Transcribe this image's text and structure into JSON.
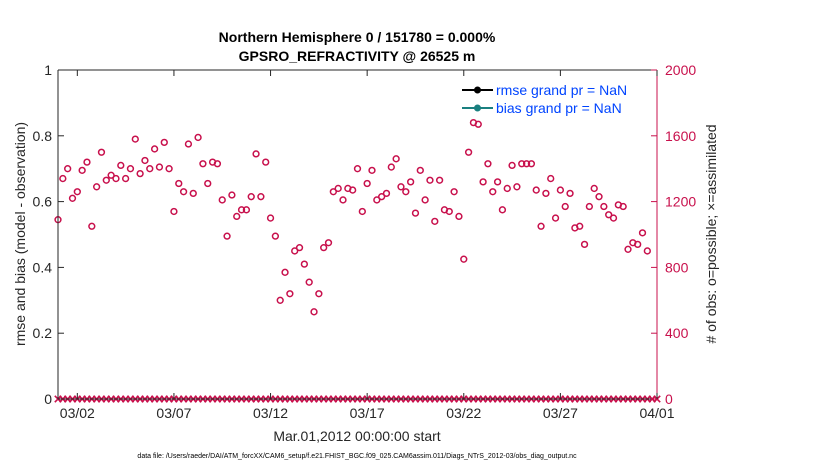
{
  "chart_data": {
    "type": "scatter",
    "title_line1": "Northern Hemisphere 0 / 151780 = 0.000%",
    "title_line2": "GPSRO_REFRACTIVITY @ 26525 m",
    "xlabel": "Mar.01,2012 00:00:00 start",
    "ylabel_left": "rmse and bias (model - observation)",
    "ylabel_right": "# of obs: o=possible; ×=assimilated",
    "xlim": [
      1,
      32
    ],
    "ylim_left": [
      0,
      1
    ],
    "ylim_right": [
      0,
      2000
    ],
    "x_ticks": [
      {
        "value": 2,
        "label": "03/02"
      },
      {
        "value": 7,
        "label": "03/07"
      },
      {
        "value": 12,
        "label": "03/12"
      },
      {
        "value": 17,
        "label": "03/17"
      },
      {
        "value": 22,
        "label": "03/22"
      },
      {
        "value": 27,
        "label": "03/27"
      },
      {
        "value": 32,
        "label": "04/01"
      }
    ],
    "y_ticks_left": [
      {
        "value": 0,
        "label": "0"
      },
      {
        "value": 0.2,
        "label": "0.2"
      },
      {
        "value": 0.4,
        "label": "0.4"
      },
      {
        "value": 0.6,
        "label": "0.6"
      },
      {
        "value": 0.8,
        "label": "0.8"
      },
      {
        "value": 1,
        "label": "1"
      }
    ],
    "y_ticks_right": [
      {
        "value": 0,
        "label": "0"
      },
      {
        "value": 400,
        "label": "400"
      },
      {
        "value": 800,
        "label": "800"
      },
      {
        "value": 1200,
        "label": "1200"
      },
      {
        "value": 1600,
        "label": "1600"
      },
      {
        "value": 2000,
        "label": "2000"
      }
    ],
    "legend": [
      {
        "label": "rmse grand pr = NaN",
        "line_color": "#000000",
        "marker_color": "#000000"
      },
      {
        "label": "bias grand pr = NaN",
        "line_color": "#1a8080",
        "marker_color": "#1a8080"
      }
    ],
    "legend_text_color": "#0044ff",
    "obs_color": "#c8104c",
    "axis_color": "#262626",
    "possible_obs": [
      {
        "x": 1.0,
        "y": 1090
      },
      {
        "x": 1.25,
        "y": 1340
      },
      {
        "x": 1.5,
        "y": 1400
      },
      {
        "x": 1.75,
        "y": 1220
      },
      {
        "x": 2.0,
        "y": 1260
      },
      {
        "x": 2.25,
        "y": 1390
      },
      {
        "x": 2.5,
        "y": 1440
      },
      {
        "x": 2.75,
        "y": 1050
      },
      {
        "x": 3.0,
        "y": 1290
      },
      {
        "x": 3.25,
        "y": 1500
      },
      {
        "x": 3.5,
        "y": 1330
      },
      {
        "x": 3.75,
        "y": 1360
      },
      {
        "x": 4.0,
        "y": 1340
      },
      {
        "x": 4.25,
        "y": 1420
      },
      {
        "x": 4.5,
        "y": 1340
      },
      {
        "x": 4.75,
        "y": 1400
      },
      {
        "x": 5.0,
        "y": 1580
      },
      {
        "x": 5.25,
        "y": 1370
      },
      {
        "x": 5.5,
        "y": 1450
      },
      {
        "x": 5.75,
        "y": 1400
      },
      {
        "x": 6.0,
        "y": 1520
      },
      {
        "x": 6.25,
        "y": 1410
      },
      {
        "x": 6.5,
        "y": 1560
      },
      {
        "x": 6.75,
        "y": 1400
      },
      {
        "x": 7.0,
        "y": 1140
      },
      {
        "x": 7.25,
        "y": 1310
      },
      {
        "x": 7.5,
        "y": 1260
      },
      {
        "x": 7.75,
        "y": 1550
      },
      {
        "x": 8.0,
        "y": 1250
      },
      {
        "x": 8.25,
        "y": 1590
      },
      {
        "x": 8.5,
        "y": 1430
      },
      {
        "x": 8.75,
        "y": 1310
      },
      {
        "x": 9.0,
        "y": 1440
      },
      {
        "x": 9.25,
        "y": 1430
      },
      {
        "x": 9.5,
        "y": 1210
      },
      {
        "x": 9.75,
        "y": 990
      },
      {
        "x": 10.0,
        "y": 1240
      },
      {
        "x": 10.25,
        "y": 1110
      },
      {
        "x": 10.5,
        "y": 1150
      },
      {
        "x": 10.75,
        "y": 1150
      },
      {
        "x": 11.0,
        "y": 1230
      },
      {
        "x": 11.25,
        "y": 1490
      },
      {
        "x": 11.5,
        "y": 1230
      },
      {
        "x": 11.75,
        "y": 1440
      },
      {
        "x": 12.0,
        "y": 1100
      },
      {
        "x": 12.25,
        "y": 990
      },
      {
        "x": 12.5,
        "y": 600
      },
      {
        "x": 12.75,
        "y": 770
      },
      {
        "x": 13.0,
        "y": 640
      },
      {
        "x": 13.25,
        "y": 900
      },
      {
        "x": 13.5,
        "y": 920
      },
      {
        "x": 13.75,
        "y": 820
      },
      {
        "x": 14.0,
        "y": 710
      },
      {
        "x": 14.25,
        "y": 530
      },
      {
        "x": 14.5,
        "y": 640
      },
      {
        "x": 14.75,
        "y": 920
      },
      {
        "x": 15.0,
        "y": 950
      },
      {
        "x": 15.25,
        "y": 1260
      },
      {
        "x": 15.5,
        "y": 1280
      },
      {
        "x": 15.75,
        "y": 1210
      },
      {
        "x": 16.0,
        "y": 1280
      },
      {
        "x": 16.25,
        "y": 1270
      },
      {
        "x": 16.5,
        "y": 1400
      },
      {
        "x": 16.75,
        "y": 1140
      },
      {
        "x": 17.0,
        "y": 1310
      },
      {
        "x": 17.25,
        "y": 1390
      },
      {
        "x": 17.5,
        "y": 1210
      },
      {
        "x": 17.75,
        "y": 1230
      },
      {
        "x": 18.0,
        "y": 1250
      },
      {
        "x": 18.25,
        "y": 1410
      },
      {
        "x": 18.5,
        "y": 1460
      },
      {
        "x": 18.75,
        "y": 1290
      },
      {
        "x": 19.0,
        "y": 1260
      },
      {
        "x": 19.25,
        "y": 1320
      },
      {
        "x": 19.5,
        "y": 1130
      },
      {
        "x": 19.75,
        "y": 1390
      },
      {
        "x": 20.0,
        "y": 1210
      },
      {
        "x": 20.25,
        "y": 1330
      },
      {
        "x": 20.5,
        "y": 1080
      },
      {
        "x": 20.75,
        "y": 1330
      },
      {
        "x": 21.0,
        "y": 1150
      },
      {
        "x": 21.25,
        "y": 1140
      },
      {
        "x": 21.5,
        "y": 1260
      },
      {
        "x": 21.75,
        "y": 1110
      },
      {
        "x": 22.0,
        "y": 850
      },
      {
        "x": 22.25,
        "y": 1500
      },
      {
        "x": 22.5,
        "y": 1680
      },
      {
        "x": 22.75,
        "y": 1670
      },
      {
        "x": 23.0,
        "y": 1320
      },
      {
        "x": 23.25,
        "y": 1430
      },
      {
        "x": 23.5,
        "y": 1260
      },
      {
        "x": 23.75,
        "y": 1320
      },
      {
        "x": 24.0,
        "y": 1150
      },
      {
        "x": 24.25,
        "y": 1280
      },
      {
        "x": 24.5,
        "y": 1420
      },
      {
        "x": 24.75,
        "y": 1290
      },
      {
        "x": 25.0,
        "y": 1430
      },
      {
        "x": 25.25,
        "y": 1430
      },
      {
        "x": 25.5,
        "y": 1430
      },
      {
        "x": 25.75,
        "y": 1270
      },
      {
        "x": 26.0,
        "y": 1050
      },
      {
        "x": 26.25,
        "y": 1250
      },
      {
        "x": 26.5,
        "y": 1340
      },
      {
        "x": 26.75,
        "y": 1100
      },
      {
        "x": 27.0,
        "y": 1270
      },
      {
        "x": 27.25,
        "y": 1170
      },
      {
        "x": 27.5,
        "y": 1250
      },
      {
        "x": 27.75,
        "y": 1040
      },
      {
        "x": 28.0,
        "y": 1050
      },
      {
        "x": 28.25,
        "y": 940
      },
      {
        "x": 28.5,
        "y": 1170
      },
      {
        "x": 28.75,
        "y": 1280
      },
      {
        "x": 29.0,
        "y": 1230
      },
      {
        "x": 29.25,
        "y": 1170
      },
      {
        "x": 29.5,
        "y": 1120
      },
      {
        "x": 29.75,
        "y": 1100
      },
      {
        "x": 30.0,
        "y": 1180
      },
      {
        "x": 30.25,
        "y": 1170
      },
      {
        "x": 30.5,
        "y": 910
      },
      {
        "x": 30.75,
        "y": 950
      },
      {
        "x": 31.0,
        "y": 940
      },
      {
        "x": 31.25,
        "y": 1010
      },
      {
        "x": 31.5,
        "y": 900
      }
    ],
    "assimilated_obs": {
      "x_start": 1,
      "x_end": 32,
      "x_step": 0.25,
      "y": 0
    }
  },
  "footer": {
    "data_file": "data file: /Users/raeder/DAI/ATM_forcXX/CAM6_setup/f.e21.FHIST_BGC.f09_025.CAM6assim.011/Diags_NTrS_2012-03/obs_diag_output.nc"
  }
}
